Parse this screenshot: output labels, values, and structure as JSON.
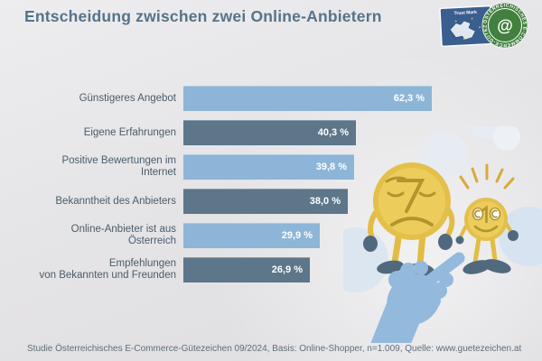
{
  "title": "Entscheidung zwischen zwei Online-Anbietern",
  "logo": {
    "trust_mark_label": "Trust Mark",
    "ring_text": "ÖSTERREICHISCHES  E-COMMERCE-GÜTEZEICHEN",
    "center_glyph": "@"
  },
  "chart_data": {
    "type": "bar",
    "orientation": "horizontal",
    "title": "Entscheidung zwischen zwei Online-Anbietern",
    "categories": [
      "Günstigeres Angebot",
      "Eigene Erfahrungen",
      "Positive Bewertungen im Internet",
      "Bekanntheit des Anbieters",
      "Online-Anbieter ist aus Österreich",
      "Empfehlungen\nvon Bekannten und Freunden"
    ],
    "values": [
      62.3,
      40.3,
      39.8,
      38.0,
      29.9,
      26.9
    ],
    "value_labels": [
      "62,3 %",
      "40,3 %",
      "39,8 %",
      "38,0 %",
      "29,9 %",
      "26,9 %"
    ],
    "unit": "%",
    "xlim": [
      0,
      65
    ],
    "grid": false,
    "legend": false,
    "bar_palette": [
      "#8db5d7",
      "#5d7689"
    ]
  },
  "footer": "Studie Österreichisches E-Commerce-Gütezeichen 09/2024, Basis: Online-Shopper, n=1.009, Quelle: www.guetezeichen.at",
  "colors": {
    "title": "#56738a",
    "label": "#4b5c6b",
    "bar_light": "#8db5d7",
    "bar_dark": "#5d7689",
    "value_text": "#ffffff",
    "coin_body": "#e4c04a",
    "coin_inner": "#eccd5c",
    "coin_face": "#b3952f",
    "limbs_dark": "#51697e",
    "rays": "#d9a93c",
    "hand": "#93b9dc",
    "decor_circle": "#dbe5f1",
    "logo_blue": "#3b5e90",
    "logo_green": "#41803e"
  }
}
